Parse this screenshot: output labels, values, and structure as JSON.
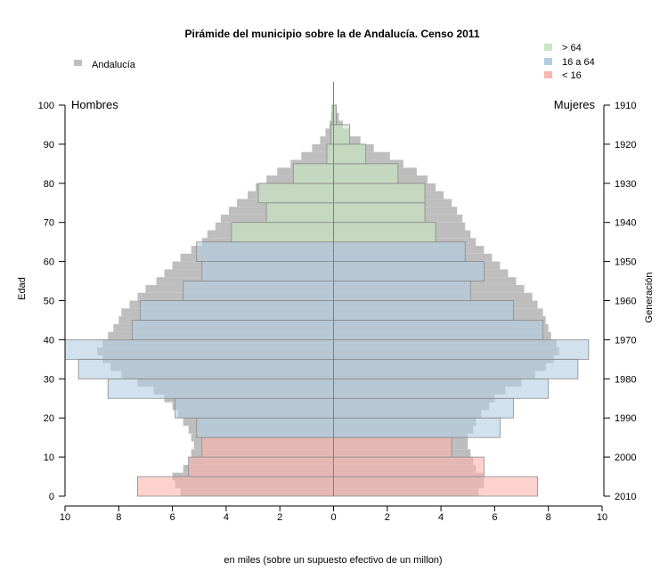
{
  "chart_data": {
    "type": "bar",
    "title": "Pirámide del municipio sobre la de Andalucía. Censo 2011",
    "xlabel": "en miles (sobre un supuesto efectivo de un millon)",
    "ylabel": "Edad",
    "y2label": "Generación",
    "male_label": "Hombres",
    "female_label": "Mujeres",
    "xlim": [
      -10,
      10
    ],
    "ylim": [
      0,
      100
    ],
    "x_ticks": [
      "10",
      "8",
      "6",
      "4",
      "2",
      "0",
      "2",
      "4",
      "6",
      "8",
      "10"
    ],
    "y_ticks": [
      "0",
      "10",
      "20",
      "30",
      "40",
      "50",
      "60",
      "70",
      "80",
      "90",
      "100"
    ],
    "y2_ticks": [
      "2010",
      "2000",
      "1990",
      "1980",
      "1970",
      "1960",
      "1950",
      "1940",
      "1930",
      "1920",
      "1910"
    ],
    "legend_left": {
      "label": "Andalucía",
      "color": "#bebebe"
    },
    "legend_right": [
      {
        "label": "> 64",
        "color": "#c7e9c0"
      },
      {
        "label": "16 a 64",
        "color": "#b3cde3"
      },
      {
        "label": "< 16",
        "color": "#fbb4ae"
      }
    ],
    "grid": true,
    "andalucia_series": {
      "name": "Andalucía",
      "age_bands": [
        {
          "age": 0,
          "m": 5.7,
          "f": 5.4
        },
        {
          "age": 2,
          "m": 5.9,
          "f": 5.6
        },
        {
          "age": 4,
          "m": 6.0,
          "f": 5.6
        },
        {
          "age": 6,
          "m": 5.6,
          "f": 5.3
        },
        {
          "age": 8,
          "m": 5.4,
          "f": 5.2
        },
        {
          "age": 10,
          "m": 5.3,
          "f": 5.1
        },
        {
          "age": 12,
          "m": 5.2,
          "f": 5.0
        },
        {
          "age": 14,
          "m": 5.3,
          "f": 5.0
        },
        {
          "age": 16,
          "m": 5.4,
          "f": 5.2
        },
        {
          "age": 18,
          "m": 5.6,
          "f": 5.3
        },
        {
          "age": 20,
          "m": 5.8,
          "f": 5.5
        },
        {
          "age": 22,
          "m": 6.0,
          "f": 5.8
        },
        {
          "age": 24,
          "m": 6.3,
          "f": 6.0
        },
        {
          "age": 26,
          "m": 6.7,
          "f": 6.4
        },
        {
          "age": 28,
          "m": 7.3,
          "f": 7.0
        },
        {
          "age": 30,
          "m": 7.9,
          "f": 7.5
        },
        {
          "age": 32,
          "m": 8.3,
          "f": 7.9
        },
        {
          "age": 34,
          "m": 8.6,
          "f": 8.2
        },
        {
          "age": 36,
          "m": 8.8,
          "f": 8.4
        },
        {
          "age": 38,
          "m": 8.6,
          "f": 8.3
        },
        {
          "age": 40,
          "m": 8.4,
          "f": 8.1
        },
        {
          "age": 42,
          "m": 8.2,
          "f": 8.0
        },
        {
          "age": 44,
          "m": 8.0,
          "f": 7.9
        },
        {
          "age": 46,
          "m": 7.9,
          "f": 7.8
        },
        {
          "age": 48,
          "m": 7.6,
          "f": 7.6
        },
        {
          "age": 50,
          "m": 7.3,
          "f": 7.4
        },
        {
          "age": 52,
          "m": 7.0,
          "f": 7.1
        },
        {
          "age": 54,
          "m": 6.6,
          "f": 6.8
        },
        {
          "age": 56,
          "m": 6.3,
          "f": 6.5
        },
        {
          "age": 58,
          "m": 6.0,
          "f": 6.2
        },
        {
          "age": 60,
          "m": 5.7,
          "f": 5.9
        },
        {
          "age": 62,
          "m": 5.3,
          "f": 5.6
        },
        {
          "age": 64,
          "m": 4.9,
          "f": 5.3
        },
        {
          "age": 66,
          "m": 4.7,
          "f": 5.1
        },
        {
          "age": 68,
          "m": 4.4,
          "f": 4.9
        },
        {
          "age": 70,
          "m": 4.2,
          "f": 4.8
        },
        {
          "age": 72,
          "m": 3.9,
          "f": 4.6
        },
        {
          "age": 74,
          "m": 3.6,
          "f": 4.4
        },
        {
          "age": 76,
          "m": 3.2,
          "f": 4.1
        },
        {
          "age": 78,
          "m": 2.9,
          "f": 3.8
        },
        {
          "age": 80,
          "m": 2.5,
          "f": 3.5
        },
        {
          "age": 82,
          "m": 2.1,
          "f": 3.1
        },
        {
          "age": 84,
          "m": 1.6,
          "f": 2.6
        },
        {
          "age": 86,
          "m": 1.2,
          "f": 2.1
        },
        {
          "age": 88,
          "m": 0.8,
          "f": 1.5
        },
        {
          "age": 90,
          "m": 0.5,
          "f": 1.0
        },
        {
          "age": 92,
          "m": 0.3,
          "f": 0.6
        },
        {
          "age": 94,
          "m": 0.15,
          "f": 0.35
        },
        {
          "age": 96,
          "m": 0.08,
          "f": 0.2
        },
        {
          "age": 98,
          "m": 0.04,
          "f": 0.1
        }
      ]
    },
    "municipio_series": {
      "name": "Municipio",
      "groups": [
        {
          "from": 0,
          "to": 5,
          "m": 7.3,
          "f": 7.6,
          "group": "< 16"
        },
        {
          "from": 5,
          "to": 10,
          "m": 5.4,
          "f": 5.6,
          "group": "< 16"
        },
        {
          "from": 10,
          "to": 15,
          "m": 4.9,
          "f": 4.4,
          "group": "< 16"
        },
        {
          "from": 15,
          "to": 20,
          "m": 5.1,
          "f": 6.2,
          "group": "16 a 64"
        },
        {
          "from": 20,
          "to": 25,
          "m": 5.9,
          "f": 6.7,
          "group": "16 a 64"
        },
        {
          "from": 25,
          "to": 30,
          "m": 8.4,
          "f": 8.0,
          "group": "16 a 64"
        },
        {
          "from": 30,
          "to": 35,
          "m": 9.5,
          "f": 9.1,
          "group": "16 a 64"
        },
        {
          "from": 35,
          "to": 40,
          "m": 10.0,
          "f": 9.5,
          "group": "16 a 64"
        },
        {
          "from": 40,
          "to": 45,
          "m": 7.5,
          "f": 7.8,
          "group": "16 a 64"
        },
        {
          "from": 45,
          "to": 50,
          "m": 7.2,
          "f": 6.7,
          "group": "16 a 64"
        },
        {
          "from": 50,
          "to": 55,
          "m": 5.6,
          "f": 5.1,
          "group": "16 a 64"
        },
        {
          "from": 55,
          "to": 60,
          "m": 4.9,
          "f": 5.6,
          "group": "16 a 64"
        },
        {
          "from": 60,
          "to": 65,
          "m": 5.1,
          "f": 4.9,
          "group": "16 a 64"
        },
        {
          "from": 65,
          "to": 70,
          "m": 3.8,
          "f": 3.8,
          "group": "> 64"
        },
        {
          "from": 70,
          "to": 75,
          "m": 2.5,
          "f": 3.4,
          "group": "> 64"
        },
        {
          "from": 75,
          "to": 80,
          "m": 2.8,
          "f": 3.4,
          "group": "> 64"
        },
        {
          "from": 80,
          "to": 85,
          "m": 1.5,
          "f": 2.4,
          "group": "> 64"
        },
        {
          "from": 85,
          "to": 90,
          "m": 0.25,
          "f": 1.2,
          "group": "> 64"
        },
        {
          "from": 90,
          "to": 95,
          "m": 0.1,
          "f": 0.6,
          "group": "> 64"
        },
        {
          "from": 95,
          "to": 100,
          "m": 0.05,
          "f": 0.1,
          "group": "> 64"
        }
      ]
    }
  }
}
